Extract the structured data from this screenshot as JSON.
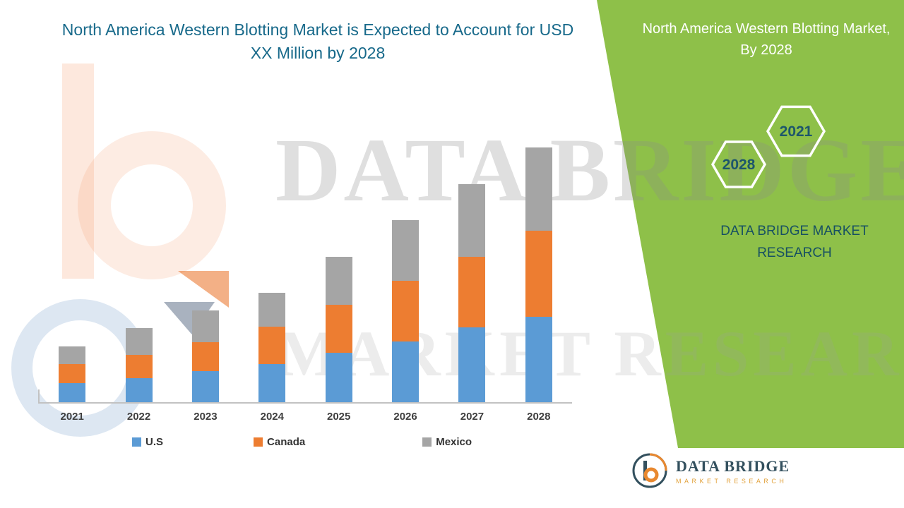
{
  "title": "North America Western Blotting Market is Expected to Account for USD XX Million by 2028",
  "watermark": {
    "line1": "DATA BRIDGE",
    "line2": "MARKET RESEARCH"
  },
  "side_panel": {
    "bg_color": "#8ec049",
    "title": "North America Western Blotting Market, By 2028",
    "hex_year_top": "2021",
    "hex_year_bottom": "2028",
    "brand_line1": "DATA BRIDGE MARKET",
    "brand_line2": "RESEARCH"
  },
  "footer_logo": {
    "name": "DATA BRIDGE",
    "sub": "MARKET RESEARCH"
  },
  "chart_data": {
    "type": "bar",
    "stacked": true,
    "title": "North America Western Blotting Market is Expected to Account for USD XX Million by 2028",
    "categories": [
      "2021",
      "2022",
      "2023",
      "2024",
      "2025",
      "2026",
      "2027",
      "2028"
    ],
    "series": [
      {
        "name": "U.S",
        "color": "#5B9BD5",
        "values": [
          27,
          34,
          44,
          54,
          70,
          86,
          106,
          121
        ]
      },
      {
        "name": "Canada",
        "color": "#ED7D31",
        "values": [
          27,
          33,
          41,
          53,
          68,
          86,
          100,
          122
        ]
      },
      {
        "name": "Mexico",
        "color": "#A5A5A5",
        "values": [
          25,
          38,
          45,
          48,
          68,
          86,
          103,
          118
        ]
      }
    ],
    "xlabel": "",
    "ylabel": "",
    "ylim": [
      0,
      380
    ],
    "value_note": "USD XX Million (undisclosed); values are relative heights",
    "grid": false,
    "legend_position": "bottom"
  }
}
